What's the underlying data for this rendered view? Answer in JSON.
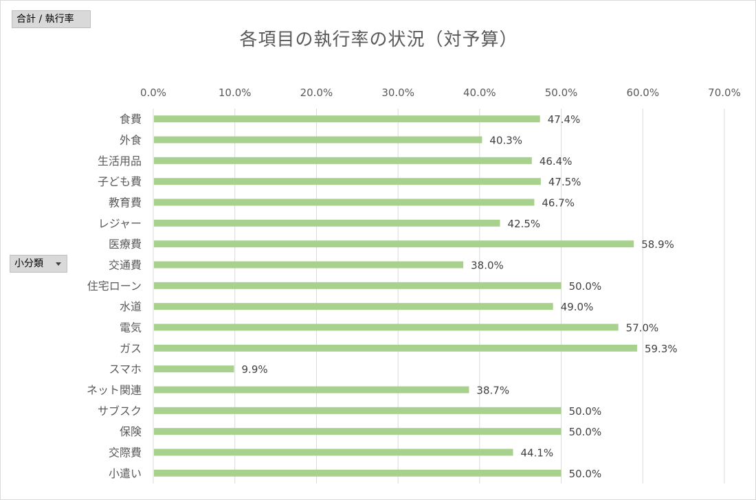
{
  "pivot": {
    "value_field_label": "合計 / 執行率",
    "axis_field_label": "小分類"
  },
  "chart_data": {
    "type": "bar",
    "orientation": "horizontal",
    "title": "各項目の執行率の状況（対予算）",
    "categories": [
      "食費",
      "外食",
      "生活用品",
      "子ども費",
      "教育費",
      "レジャー",
      "医療費",
      "交通費",
      "住宅ローン",
      "水道",
      "電気",
      "ガス",
      "スマホ",
      "ネット関連",
      "サブスク",
      "保険",
      "交際費",
      "小遣い"
    ],
    "values": [
      0.474,
      0.403,
      0.464,
      0.475,
      0.467,
      0.425,
      0.589,
      0.38,
      0.5,
      0.49,
      0.57,
      0.593,
      0.099,
      0.387,
      0.5,
      0.5,
      0.441,
      0.5
    ],
    "data_labels": [
      "47.4%",
      "40.3%",
      "46.4%",
      "47.5%",
      "46.7%",
      "42.5%",
      "58.9%",
      "38.0%",
      "50.0%",
      "49.0%",
      "57.0%",
      "59.3%",
      "9.9%",
      "38.7%",
      "50.0%",
      "50.0%",
      "44.1%",
      "50.0%"
    ],
    "x_ticks": [
      0,
      0.1,
      0.2,
      0.3,
      0.4,
      0.5,
      0.6,
      0.7
    ],
    "x_tick_labels": [
      "0.0%",
      "10.0%",
      "20.0%",
      "30.0%",
      "40.0%",
      "50.0%",
      "60.0%",
      "70.0%"
    ],
    "xlim": [
      0,
      0.7
    ],
    "x_axis_position": "top",
    "grid": true,
    "legend": "none",
    "colors": {
      "bar": "#a9d18e",
      "grid": "#d9d9d9",
      "tick_text": "#595959",
      "label_text": "#404040",
      "title": "#595959"
    }
  }
}
